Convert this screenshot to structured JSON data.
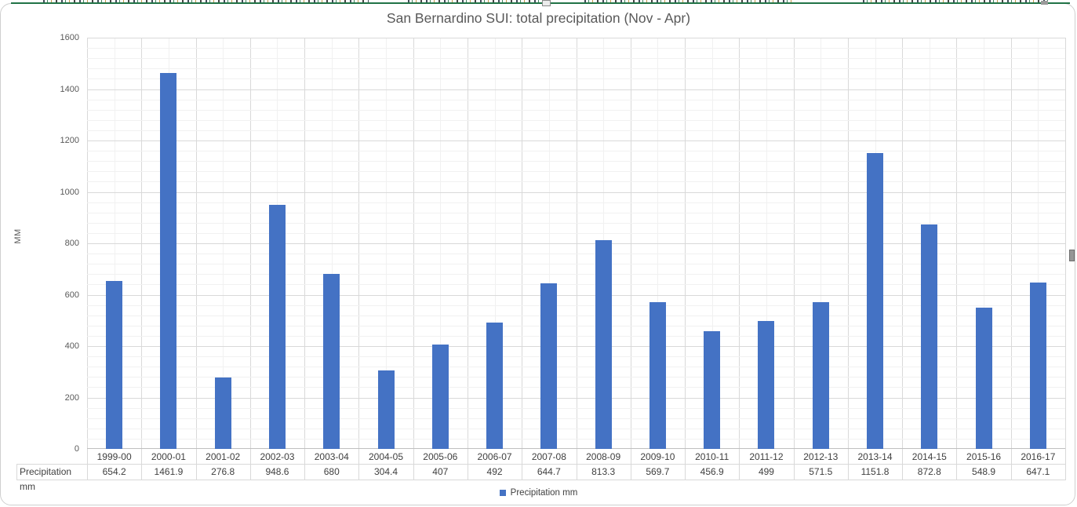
{
  "chart_data": {
    "type": "bar",
    "title": "San Bernardino SUI: total precipitation (Nov - Apr)",
    "ylabel": "MM",
    "xlabel": "",
    "categories": [
      "1999-00",
      "2000-01",
      "2001-02",
      "2002-03",
      "2003-04",
      "2004-05",
      "2005-06",
      "2006-07",
      "2007-08",
      "2008-09",
      "2009-10",
      "2010-11",
      "2011-12",
      "2012-13",
      "2013-14",
      "2014-15",
      "2015-16",
      "2016-17"
    ],
    "series": [
      {
        "name": "Precipitation mm",
        "values": [
          654.2,
          1461.9,
          276.8,
          948.6,
          680,
          304.4,
          407,
          492,
          644.7,
          813.3,
          569.7,
          456.9,
          499,
          571.5,
          1151.8,
          872.8,
          548.9,
          647.1
        ]
      }
    ],
    "ylim": [
      0,
      1600
    ],
    "ytick_step": 200,
    "minor_ytick_step": 40,
    "grid": true,
    "legend_position": "bottom",
    "data_table": {
      "row_label": "Precipitation mm"
    }
  },
  "colors": {
    "bar": "#4472C4",
    "major_grid": "#d9d9d9",
    "minor_grid": "#f1f1f1",
    "axis_line": "#c0c0c0",
    "table_border": "#d9d9d9",
    "title_text": "#595959",
    "tick_text": "#595959",
    "table_text": "#404040",
    "selection_green": "#217346"
  }
}
